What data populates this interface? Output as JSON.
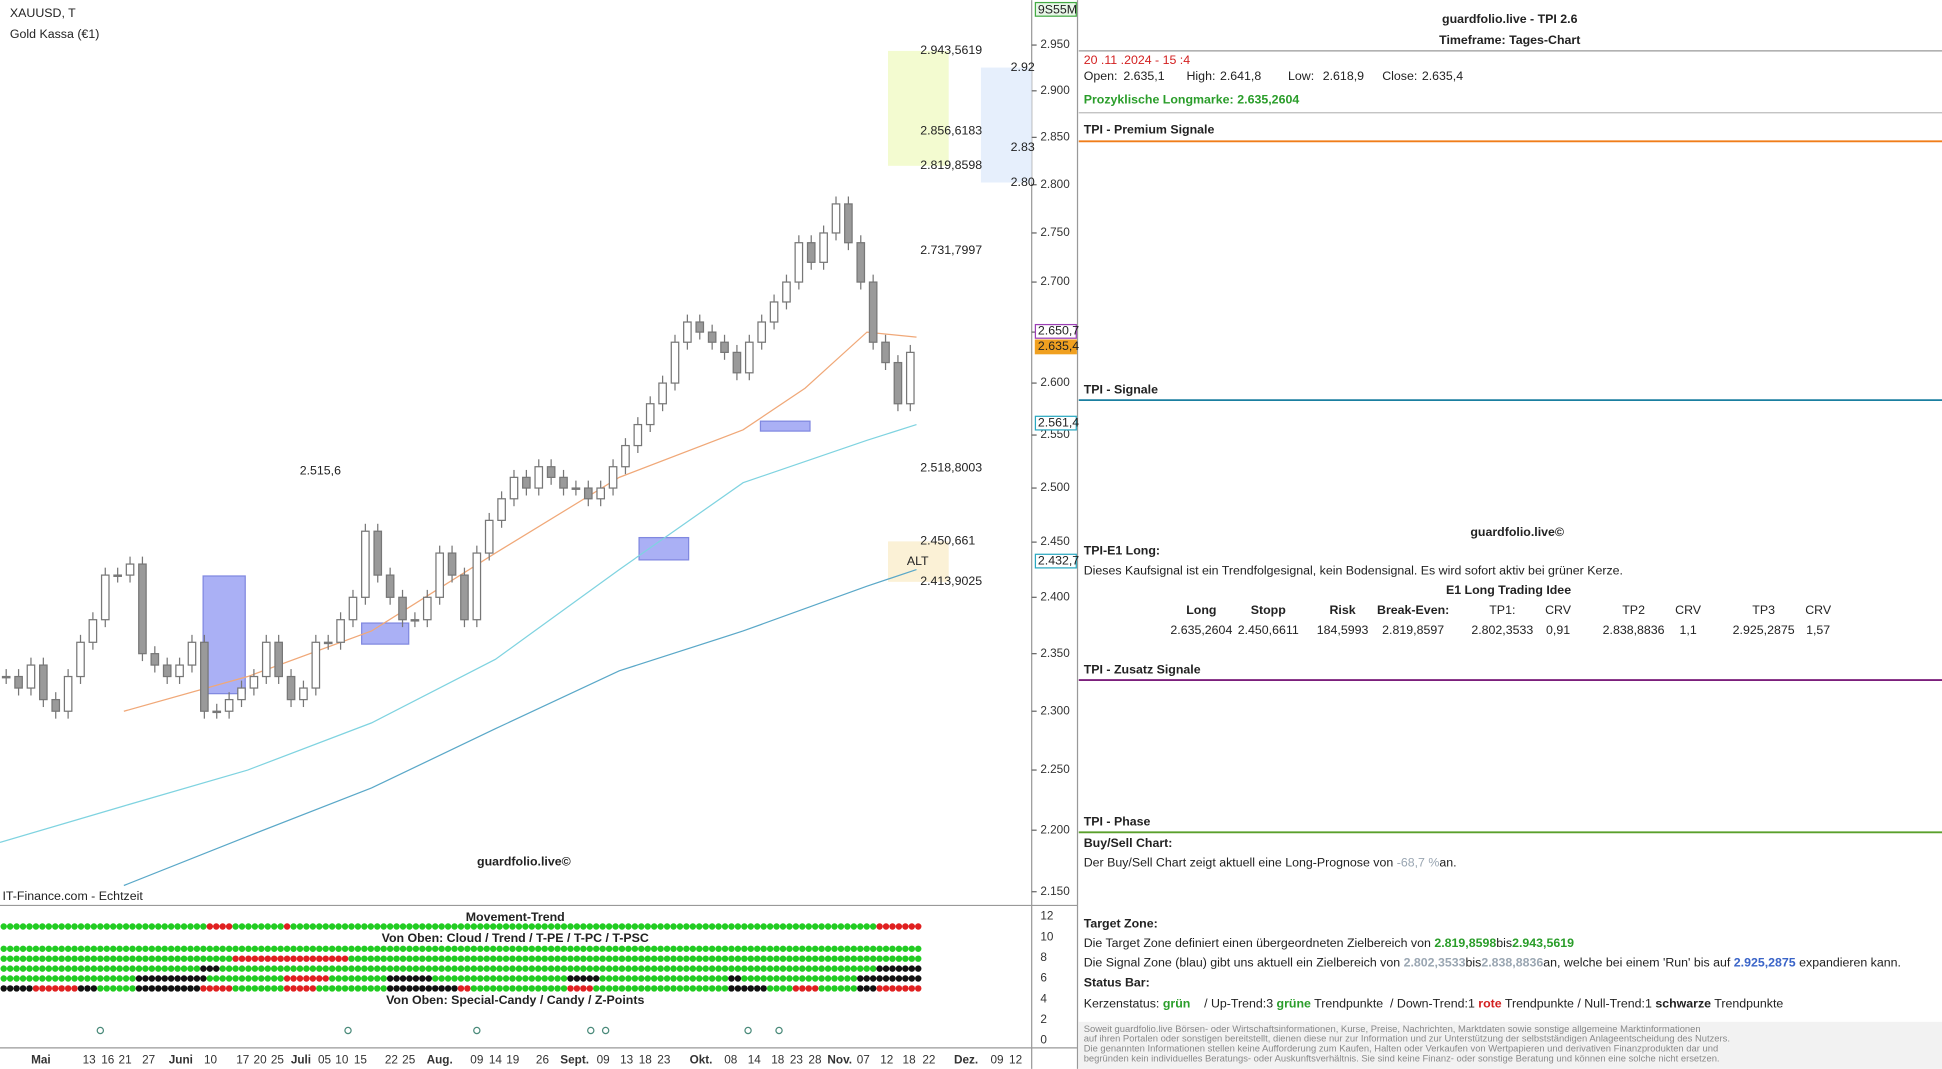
{
  "chart_data": {
    "type": "candlestick",
    "symbol": "XAUUSD, T",
    "instrument": "Gold Kassa (€1)",
    "source": "IT-Finance.com - Echtzeit",
    "watermark": "guardfolio.live©",
    "timer": "9S55M",
    "log_scale": true,
    "ylim": [
      2140,
      3000
    ],
    "yticks": [
      {
        "value": 2950,
        "label": "2.950"
      },
      {
        "value": 2900,
        "label": "2.900"
      },
      {
        "value": 2850,
        "label": "2.850"
      },
      {
        "value": 2800,
        "label": "2.800"
      },
      {
        "value": 2750,
        "label": "2.750"
      },
      {
        "value": 2700,
        "label": "2.700"
      },
      {
        "value": 2650,
        "label": "2.650"
      },
      {
        "value": 2600,
        "label": "2.600"
      },
      {
        "value": 2550,
        "label": "2.550"
      },
      {
        "value": 2500,
        "label": "2.500"
      },
      {
        "value": 2450,
        "label": "2.450"
      },
      {
        "value": 2400,
        "label": "2.400"
      },
      {
        "value": 2350,
        "label": "2.350"
      },
      {
        "value": 2300,
        "label": "2.300"
      },
      {
        "value": 2250,
        "label": "2.250"
      },
      {
        "value": 2200,
        "label": "2.200"
      },
      {
        "value": 2150,
        "label": "2.150"
      }
    ],
    "x_labels": [
      "Mai",
      "13",
      "16",
      "21",
      "27",
      "Juni",
      "10",
      "17",
      "20",
      "25",
      "Juli",
      "05",
      "10",
      "15",
      "22",
      "25",
      "Aug.",
      "09",
      "14",
      "19",
      "26",
      "Sept.",
      "09",
      "13",
      "18",
      "23",
      "Okt.",
      "08",
      "14",
      "18",
      "23",
      "28",
      "Nov.",
      "07",
      "12",
      "18",
      "22",
      "Dez.",
      "09",
      "12"
    ],
    "closes": [
      2330,
      2320,
      2340,
      2310,
      2300,
      2330,
      2360,
      2380,
      2420,
      2420,
      2430,
      2350,
      2340,
      2330,
      2340,
      2360,
      2300,
      2300,
      2310,
      2320,
      2330,
      2360,
      2330,
      2310,
      2320,
      2360,
      2360,
      2380,
      2400,
      2460,
      2420,
      2400,
      2380,
      2380,
      2400,
      2440,
      2420,
      2380,
      2440,
      2470,
      2490,
      2510,
      2500,
      2520,
      2510,
      2500,
      2500,
      2490,
      2500,
      2520,
      2540,
      2560,
      2580,
      2600,
      2640,
      2660,
      2650,
      2640,
      2630,
      2610,
      2640,
      2660,
      2680,
      2700,
      2740,
      2720,
      2750,
      2780,
      2740,
      2700,
      2640,
      2620,
      2580,
      2630
    ],
    "moving_averages": [
      {
        "color": "#f0a878",
        "x": [
          9.5,
          19.5,
          29.5,
          39.5,
          49.5,
          59.5,
          64.5,
          69.5,
          73.5
        ],
        "values": [
          2300,
          2330,
          2370,
          2440,
          2510,
          2555,
          2595,
          2650,
          2645
        ]
      },
      {
        "color": "#7fd3e0",
        "x": [
          -0.5,
          9.5,
          19.5,
          29.5,
          39.5,
          49.5,
          59.5,
          69.5,
          73.5
        ],
        "values": [
          2190,
          2220,
          2250,
          2290,
          2345,
          2425,
          2505,
          2545,
          2560
        ]
      },
      {
        "color": "#5aa8c8",
        "x": [
          9.5,
          19.5,
          29.5,
          39.5,
          49.5,
          59.5,
          69.5,
          73.5
        ],
        "values": [
          2155,
          2195,
          2235,
          2285,
          2335,
          2370,
          2410,
          2425
        ]
      }
    ],
    "target_zone": [
      {
        "value": 2943.5619,
        "label": "2.943,5619"
      },
      {
        "value": 2856.6183,
        "label": "2.856,6183"
      },
      {
        "value": 2819.8598,
        "label": "2.819,8598"
      }
    ],
    "signal_zone": [
      {
        "value": 2925.2875,
        "label": "2.92"
      },
      {
        "value": 2838.8836,
        "label": "2.83"
      },
      {
        "value": 2802.3533,
        "label": "2.80"
      }
    ],
    "targets": [
      {
        "value": 2731.7997,
        "label": "2.731,7997"
      },
      {
        "value": 2518.8003,
        "label": "2.518,8003"
      },
      {
        "value": 2515.6,
        "label": "2.515,6"
      }
    ],
    "alt_zone": {
      "name": "ALT",
      "levels": [
        {
          "value": 2450.661,
          "label": "2.450,661"
        },
        {
          "value": 2413.9025,
          "label": "2.413,9025"
        }
      ]
    },
    "price_tags": [
      {
        "value": 2650.7,
        "label": "2.650,7",
        "color": "#9b3fb5"
      },
      {
        "value": 2635.4,
        "label": "2.635,4",
        "color": "#f0a020"
      },
      {
        "value": 2561.4,
        "label": "2.561,4",
        "color": "#2aa8c0"
      },
      {
        "value": 2432.7,
        "label": "2.432,7",
        "color": "#2aa8c0"
      }
    ]
  },
  "indicator_panel": {
    "title": "Movement-Trend",
    "rows_top": "Von Oben: Cloud / Trend / T-PE / T-PC / T-PSC",
    "rows_bottom": "Von Oben: Special-Candy / Candy / Z-Points",
    "yticks": [
      12,
      10,
      8,
      6,
      4,
      2,
      0
    ]
  },
  "tpi": {
    "title": "guardfolio.live - TPI 2.6",
    "subtitle": "Timeframe: Tages-Chart",
    "date": "20 .11 .2024 - 15 :4",
    "ohlc": [
      [
        "Open:",
        "2.635,1"
      ],
      [
        "High:",
        "2.641,8"
      ],
      [
        "Low:",
        "2.618,9"
      ],
      [
        "Close:",
        "2.635,4"
      ]
    ],
    "longmarke": [
      "Prozyklische Longmarke:",
      "2.635,2604"
    ],
    "premium": "TPI - Premium Signale",
    "signale": "TPI - Signale",
    "watermark": "guardfolio.live©",
    "e1_title": "TPI-E1 Long:",
    "e1_text": "Dieses Kaufsignal ist ein Trendfolgesignal, kein Bodensignal. Es wird sofort aktiv bei grüner Kerze.",
    "idea_title": "E1 Long Trading Idee",
    "idea_header": [
      "Long",
      "Stopp",
      "Risk",
      "Break-Even:",
      "TP1:",
      "CRV",
      "TP2",
      "CRV",
      "TP3",
      "CRV"
    ],
    "idea_row": [
      "2.635,2604",
      "2.450,6611",
      "184,5993",
      "2.819,8597",
      "2.802,3533",
      "0,91",
      "2.838,8836",
      "1,1",
      "2.925,2875",
      "1,57"
    ],
    "zusatz": "TPI - Zusatz Signale",
    "phase": "TPI - Phase",
    "buysell_title": "Buy/Sell Chart:",
    "buysell_text": [
      "Der Buy/Sell Chart zeigt aktuell eine Long-Prognose von ",
      "-68,7 %",
      "an."
    ],
    "target_title": "Target Zone:",
    "target_text": [
      "Die Target Zone definiert einen übergeordneten Zielbereich von ",
      "2.819,8598",
      "bis",
      "2.943,5619"
    ],
    "signal_text": [
      "Die Signal Zone (blau) gibt uns aktuell ein Zielbereich von ",
      "2.802,3533",
      "bis",
      "2.838,8836",
      "an, welche bei einem 'Run' bis auf ",
      "2.925,2875",
      " expandieren kann."
    ],
    "status_title": "Status Bar:",
    "status_text": [
      "Kerzenstatus: ",
      "grün",
      "    / Up-Trend:3 ",
      "grüne",
      " Trendpunkte  / Down-Trend:1 ",
      "rote",
      " Trendpunkte / Null-Trend:1 ",
      "schwarze",
      " Trendpunkte"
    ],
    "disclaimer": [
      "Soweit guardfolio.live Börsen- oder Wirtschaftsinformationen, Kurse, Preise, Nachrichten, Marktdaten sowie sonstige allgemeine Marktinformationen",
      "auf ihren Portalen oder sonstigen bereitstellt, dienen diese nur zur Information und zur Unterstützung der selbstständigen Anlageentscheidung des Nutzers.",
      "Die genannten Informationen stellen keine Aufforderung zum Kaufen, Halten oder Verkaufen von Wertpapieren und derivativen Finanzprodukten dar und",
      "begründen kein individuelles Beratungs- oder Auskunftsverhältnis. Sie sind keine Finanz- oder sonstige Beratung und können eine solche nicht ersetzen."
    ]
  }
}
